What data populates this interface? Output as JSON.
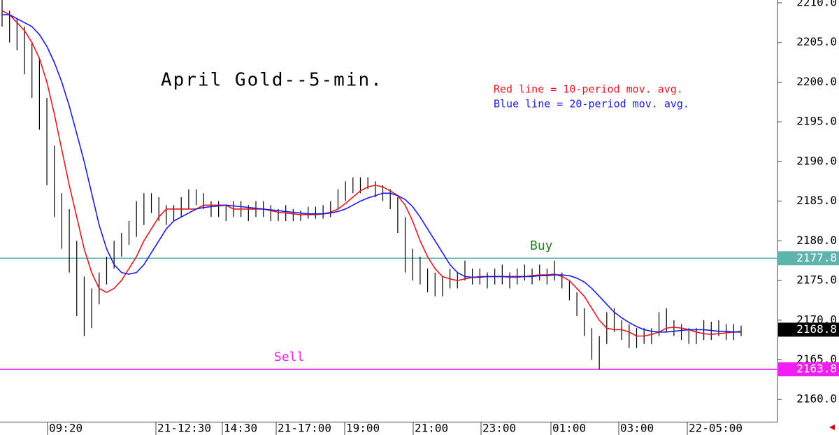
{
  "chart_data": {
    "type": "ohlc",
    "title": "April Gold--5-min.",
    "annotations": [
      "Red line = 10-period mov. avg.",
      "Blue line = 20-period mov. avg.",
      "Buy",
      "Sell"
    ],
    "time_labels": [
      "09:20",
      "21-12:30",
      "14:30",
      "21-17:00",
      "19:00",
      "21:00",
      "23:00",
      "01:00",
      "03:00",
      "22-05:00"
    ],
    "ylim": [
      2157.2,
      2210.35
    ],
    "yticks": [
      {
        "value": 2160,
        "label": "2160.0"
      },
      {
        "value": 2165,
        "label": "2165.0"
      },
      {
        "value": 2170,
        "label": "2170.0"
      },
      {
        "value": 2175,
        "label": "2175.0"
      },
      {
        "value": 2180,
        "label": "2180.0"
      },
      {
        "value": 2185,
        "label": "2185.0"
      },
      {
        "value": 2190,
        "label": "2190.0"
      },
      {
        "value": 2195,
        "label": "2195.0"
      },
      {
        "value": 2200,
        "label": "2200.0"
      },
      {
        "value": 2205,
        "label": "2205.0"
      },
      {
        "value": 2210,
        "label": "2210.0"
      }
    ],
    "bars": {
      "color": "#000000",
      "high": [
        2210.5,
        2209,
        2208,
        2207,
        2205,
        2203,
        2198,
        2192,
        2186,
        2184,
        2180,
        2175.5,
        2174,
        2176,
        2178,
        2180,
        2181,
        2182.5,
        2185,
        2186,
        2186,
        2185.5,
        2184.5,
        2184.5,
        2185.5,
        2186.5,
        2186.5,
        2186,
        2185,
        2185,
        2184.5,
        2185,
        2185,
        2184.5,
        2185,
        2185,
        2184.5,
        2184,
        2184.5,
        2184,
        2183.8,
        2184.3,
        2184.3,
        2184.5,
        2185,
        2186.5,
        2187.5,
        2188,
        2188,
        2188,
        2187.5,
        2187,
        2186.5,
        2185.5,
        2183,
        2179,
        2178,
        2176.5,
        2176,
        2175.5,
        2176.5,
        2176,
        2177.5,
        2176.5,
        2176.5,
        2176,
        2176.5,
        2177,
        2176,
        2176.5,
        2177,
        2176.5,
        2177,
        2176.5,
        2177.5,
        2176,
        2175,
        2173.5,
        2171.5,
        2169,
        2168,
        2171,
        2171.5,
        2170,
        2169.5,
        2169,
        2169,
        2169,
        2171,
        2171.5,
        2170,
        2169.5,
        2169,
        2169,
        2170,
        2169.8,
        2170,
        2169.5,
        2169.5,
        2169.3
      ],
      "low": [
        2207,
        2205,
        2204,
        2201,
        2198,
        2194,
        2187,
        2183,
        2179,
        2176,
        2170.5,
        2168,
        2169,
        2172,
        2174.5,
        2176.5,
        2178,
        2179.5,
        2180.5,
        2182,
        2183.5,
        2182.5,
        2182,
        2182.5,
        2183,
        2184,
        2184.5,
        2184,
        2183,
        2183,
        2182.5,
        2183,
        2183,
        2182.5,
        2183,
        2183,
        2182.5,
        2182.5,
        2182.5,
        2182.5,
        2182.5,
        2182.8,
        2182.8,
        2182.8,
        2183,
        2184,
        2185,
        2186,
        2186,
        2186.5,
        2185.5,
        2185,
        2184,
        2181,
        2176,
        2175,
        2174.5,
        2173.5,
        2173,
        2173,
        2174,
        2174,
        2175,
        2174.5,
        2174.5,
        2174,
        2174.5,
        2174.5,
        2174,
        2174.5,
        2175,
        2174.5,
        2175,
        2174.5,
        2175,
        2174,
        2172.5,
        2170.5,
        2168,
        2165,
        2163.8,
        2167,
        2168.5,
        2167.5,
        2166.5,
        2166.5,
        2167,
        2167,
        2168,
        2168.5,
        2168,
        2167.5,
        2167,
        2167,
        2167.5,
        2167.5,
        2168,
        2167.5,
        2167.5,
        2168
      ]
    },
    "series": [
      {
        "color": "#e8141c",
        "values": [
          2209,
          2208.5,
          2207.5,
          2206.5,
          2205,
          2203,
          2200,
          2196,
          2191.5,
          2187,
          2183,
          2179,
          2176,
          2174,
          2173.5,
          2174,
          2175,
          2176.5,
          2178,
          2180,
          2181.5,
          2183,
          2184,
          2184,
          2184,
          2184,
          2184,
          2184.5,
          2184.5,
          2184.5,
          2184.5,
          2184,
          2184,
          2184,
          2184,
          2184,
          2183.8,
          2183.6,
          2183.5,
          2183.4,
          2183.3,
          2183.3,
          2183.3,
          2183.4,
          2183.6,
          2184,
          2184.7,
          2185.5,
          2186.3,
          2186.8,
          2187,
          2186.8,
          2186.3,
          2185.7,
          2184.5,
          2182.5,
          2180,
          2178,
          2176.5,
          2175.5,
          2175.2,
          2175,
          2175.2,
          2175.4,
          2175.5,
          2175.5,
          2175.5,
          2175.5,
          2175.4,
          2175.4,
          2175.5,
          2175.6,
          2175.7,
          2175.7,
          2175.8,
          2175.5,
          2175,
          2174,
          2173,
          2171.5,
          2170,
          2169,
          2168.8,
          2168.8,
          2168.5,
          2168,
          2168,
          2168.2,
          2168.5,
          2169,
          2169.1,
          2169,
          2168.8,
          2168.5,
          2168.3,
          2168.2,
          2168.3,
          2168.4,
          2168.5,
          2168.6
        ]
      },
      {
        "color": "#1a1ae6",
        "values": [
          2208.5,
          2208.5,
          2208,
          2207.5,
          2207,
          2206,
          2204.5,
          2202.5,
          2200,
          2197,
          2193.5,
          2190,
          2186,
          2182,
          2179,
          2177,
          2176,
          2175.8,
          2176,
          2177,
          2178.5,
          2180,
          2181.5,
          2182.5,
          2183,
          2183.5,
          2184,
          2184.2,
          2184.3,
          2184.4,
          2184.5,
          2184.4,
          2184.3,
          2184.2,
          2184.1,
          2184,
          2183.9,
          2183.8,
          2183.7,
          2183.6,
          2183.5,
          2183.4,
          2183.4,
          2183.4,
          2183.5,
          2183.7,
          2184,
          2184.5,
          2185,
          2185.4,
          2185.7,
          2186,
          2186,
          2185.7,
          2185.2,
          2184.3,
          2183,
          2181.5,
          2180,
          2178.5,
          2177,
          2176,
          2175.5,
          2175.4,
          2175.4,
          2175.5,
          2175.5,
          2175.5,
          2175.5,
          2175.5,
          2175.5,
          2175.5,
          2175.6,
          2175.6,
          2175.7,
          2175.7,
          2175.6,
          2175.3,
          2174.8,
          2174,
          2173,
          2172,
          2171,
          2170.3,
          2169.7,
          2169.2,
          2168.8,
          2168.6,
          2168.5,
          2168.5,
          2168.6,
          2168.7,
          2168.8,
          2168.8,
          2168.8,
          2168.7,
          2168.6,
          2168.6,
          2168.5,
          2168.5
        ]
      }
    ],
    "hlines": [
      {
        "value": 2177.8,
        "color": "#5fb3ad"
      },
      {
        "value": 2163.8,
        "color": "#f01ef0"
      }
    ],
    "last_price": 2168.8
  }
}
